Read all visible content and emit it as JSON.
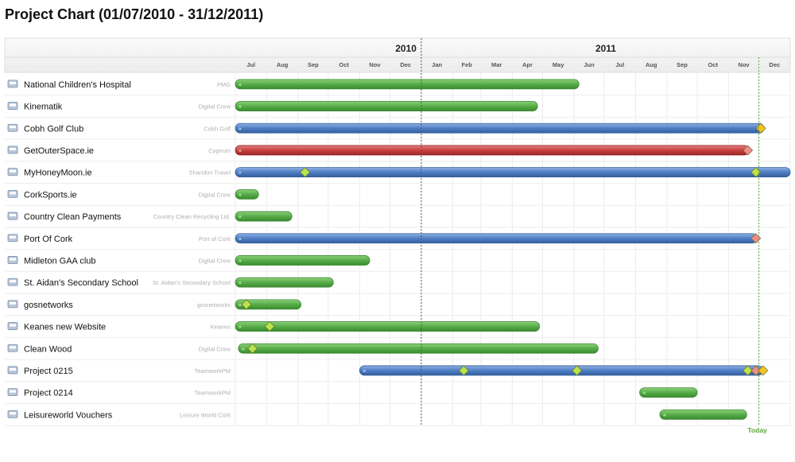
{
  "title": "Project Chart (01/07/2010 - 31/12/2011)",
  "colors": {
    "green": "#56ad47",
    "green_dark": "#3b8a30",
    "blue": "#4f7fc4",
    "blue_dark": "#345f9e",
    "red": "#c94040",
    "red_dark": "#9a2727",
    "milestone_green": "#b8e34c",
    "milestone_red": "#f08b8b",
    "milestone_yellow": "#f4c41b",
    "today": "#5aa53c"
  },
  "chart_data": {
    "type": "gantt",
    "date_range": [
      "2010-07-01",
      "2011-12-31"
    ],
    "years": [
      "2010",
      "2011"
    ],
    "months": [
      "Jul",
      "Aug",
      "Sep",
      "Oct",
      "Nov",
      "Dec",
      "Jan",
      "Feb",
      "Mar",
      "Apr",
      "May",
      "Jun",
      "Jul",
      "Aug",
      "Sep",
      "Oct",
      "Nov",
      "Dec"
    ],
    "today": "2011-12-01",
    "today_label": "Today",
    "rows": [
      {
        "name": "National Children's Hospital",
        "client": "PMG",
        "start": "2010-07-01",
        "end": "2011-06-05",
        "color": "green",
        "milestones": []
      },
      {
        "name": "Kinematik",
        "client": "Digital Crew",
        "start": "2010-07-01",
        "end": "2011-04-25",
        "color": "green",
        "milestones": []
      },
      {
        "name": "Cobh Golf Club",
        "client": "Cobh Golf",
        "start": "2010-07-01",
        "end": "2011-12-05",
        "color": "blue",
        "milestones": [
          {
            "date": "2011-12-03",
            "color": "milestone_yellow"
          }
        ]
      },
      {
        "name": "GetOuterSpace.ie",
        "client": "Cygnum",
        "start": "2010-07-01",
        "end": "2011-11-20",
        "color": "red",
        "milestones": [
          {
            "date": "2011-11-20",
            "color": "milestone_red"
          }
        ]
      },
      {
        "name": "MyHoneyMoon.ie",
        "client": "Shandon Travel",
        "start": "2010-07-01",
        "end": "2011-12-31",
        "color": "blue",
        "milestones": [
          {
            "date": "2010-09-08",
            "color": "milestone_green"
          },
          {
            "date": "2011-11-28",
            "color": "milestone_green"
          }
        ]
      },
      {
        "name": "CorkSports.ie",
        "client": "Digital Crew",
        "start": "2010-07-01",
        "end": "2010-07-23",
        "color": "green",
        "milestones": []
      },
      {
        "name": "Country Clean Payments",
        "client": "Country Clean Recycling Ltd.",
        "start": "2010-07-01",
        "end": "2010-08-25",
        "color": "green",
        "milestones": []
      },
      {
        "name": "Port Of Cork",
        "client": "Port of Cork",
        "start": "2010-07-01",
        "end": "2011-11-28",
        "color": "blue",
        "milestones": [
          {
            "date": "2011-11-28",
            "color": "milestone_red"
          }
        ]
      },
      {
        "name": "Midleton GAA club",
        "client": "Digital Crew",
        "start": "2010-07-01",
        "end": "2010-11-10",
        "color": "green",
        "milestones": []
      },
      {
        "name": "St. Aidan's Secondary School",
        "client": "St. Aidan's Secondary School",
        "start": "2010-07-01",
        "end": "2010-10-05",
        "color": "green",
        "milestones": []
      },
      {
        "name": "gosnetworks",
        "client": "gosnetworks",
        "start": "2010-07-01",
        "end": "2010-09-03",
        "color": "green",
        "milestones": [
          {
            "date": "2010-07-12",
            "color": "milestone_green"
          }
        ]
      },
      {
        "name": "Keanes new Website",
        "client": "Keanes",
        "start": "2010-07-01",
        "end": "2011-04-27",
        "color": "green",
        "milestones": [
          {
            "date": "2010-08-04",
            "color": "milestone_green"
          }
        ]
      },
      {
        "name": "Clean Wood",
        "client": "Digital Crew",
        "start": "2010-07-04",
        "end": "2011-06-24",
        "color": "green",
        "milestones": [
          {
            "date": "2010-07-18",
            "color": "milestone_green"
          }
        ]
      },
      {
        "name": "Project 0215",
        "client": "TeamworkPM",
        "start": "2010-11-01",
        "end": "2011-12-04",
        "color": "blue",
        "milestones": [
          {
            "date": "2011-02-12",
            "color": "milestone_green"
          },
          {
            "date": "2011-06-04",
            "color": "milestone_green"
          },
          {
            "date": "2011-11-20",
            "color": "milestone_green"
          },
          {
            "date": "2011-11-28",
            "color": "milestone_red"
          },
          {
            "date": "2011-12-05",
            "color": "milestone_yellow"
          }
        ]
      },
      {
        "name": "Project 0214",
        "client": "TeamworkPM",
        "start": "2011-08-05",
        "end": "2011-09-30",
        "color": "green",
        "milestones": []
      },
      {
        "name": "Leisureworld Vouchers",
        "client": "Leisure World Cork",
        "start": "2011-08-25",
        "end": "2011-11-18",
        "color": "green",
        "milestones": []
      }
    ]
  }
}
